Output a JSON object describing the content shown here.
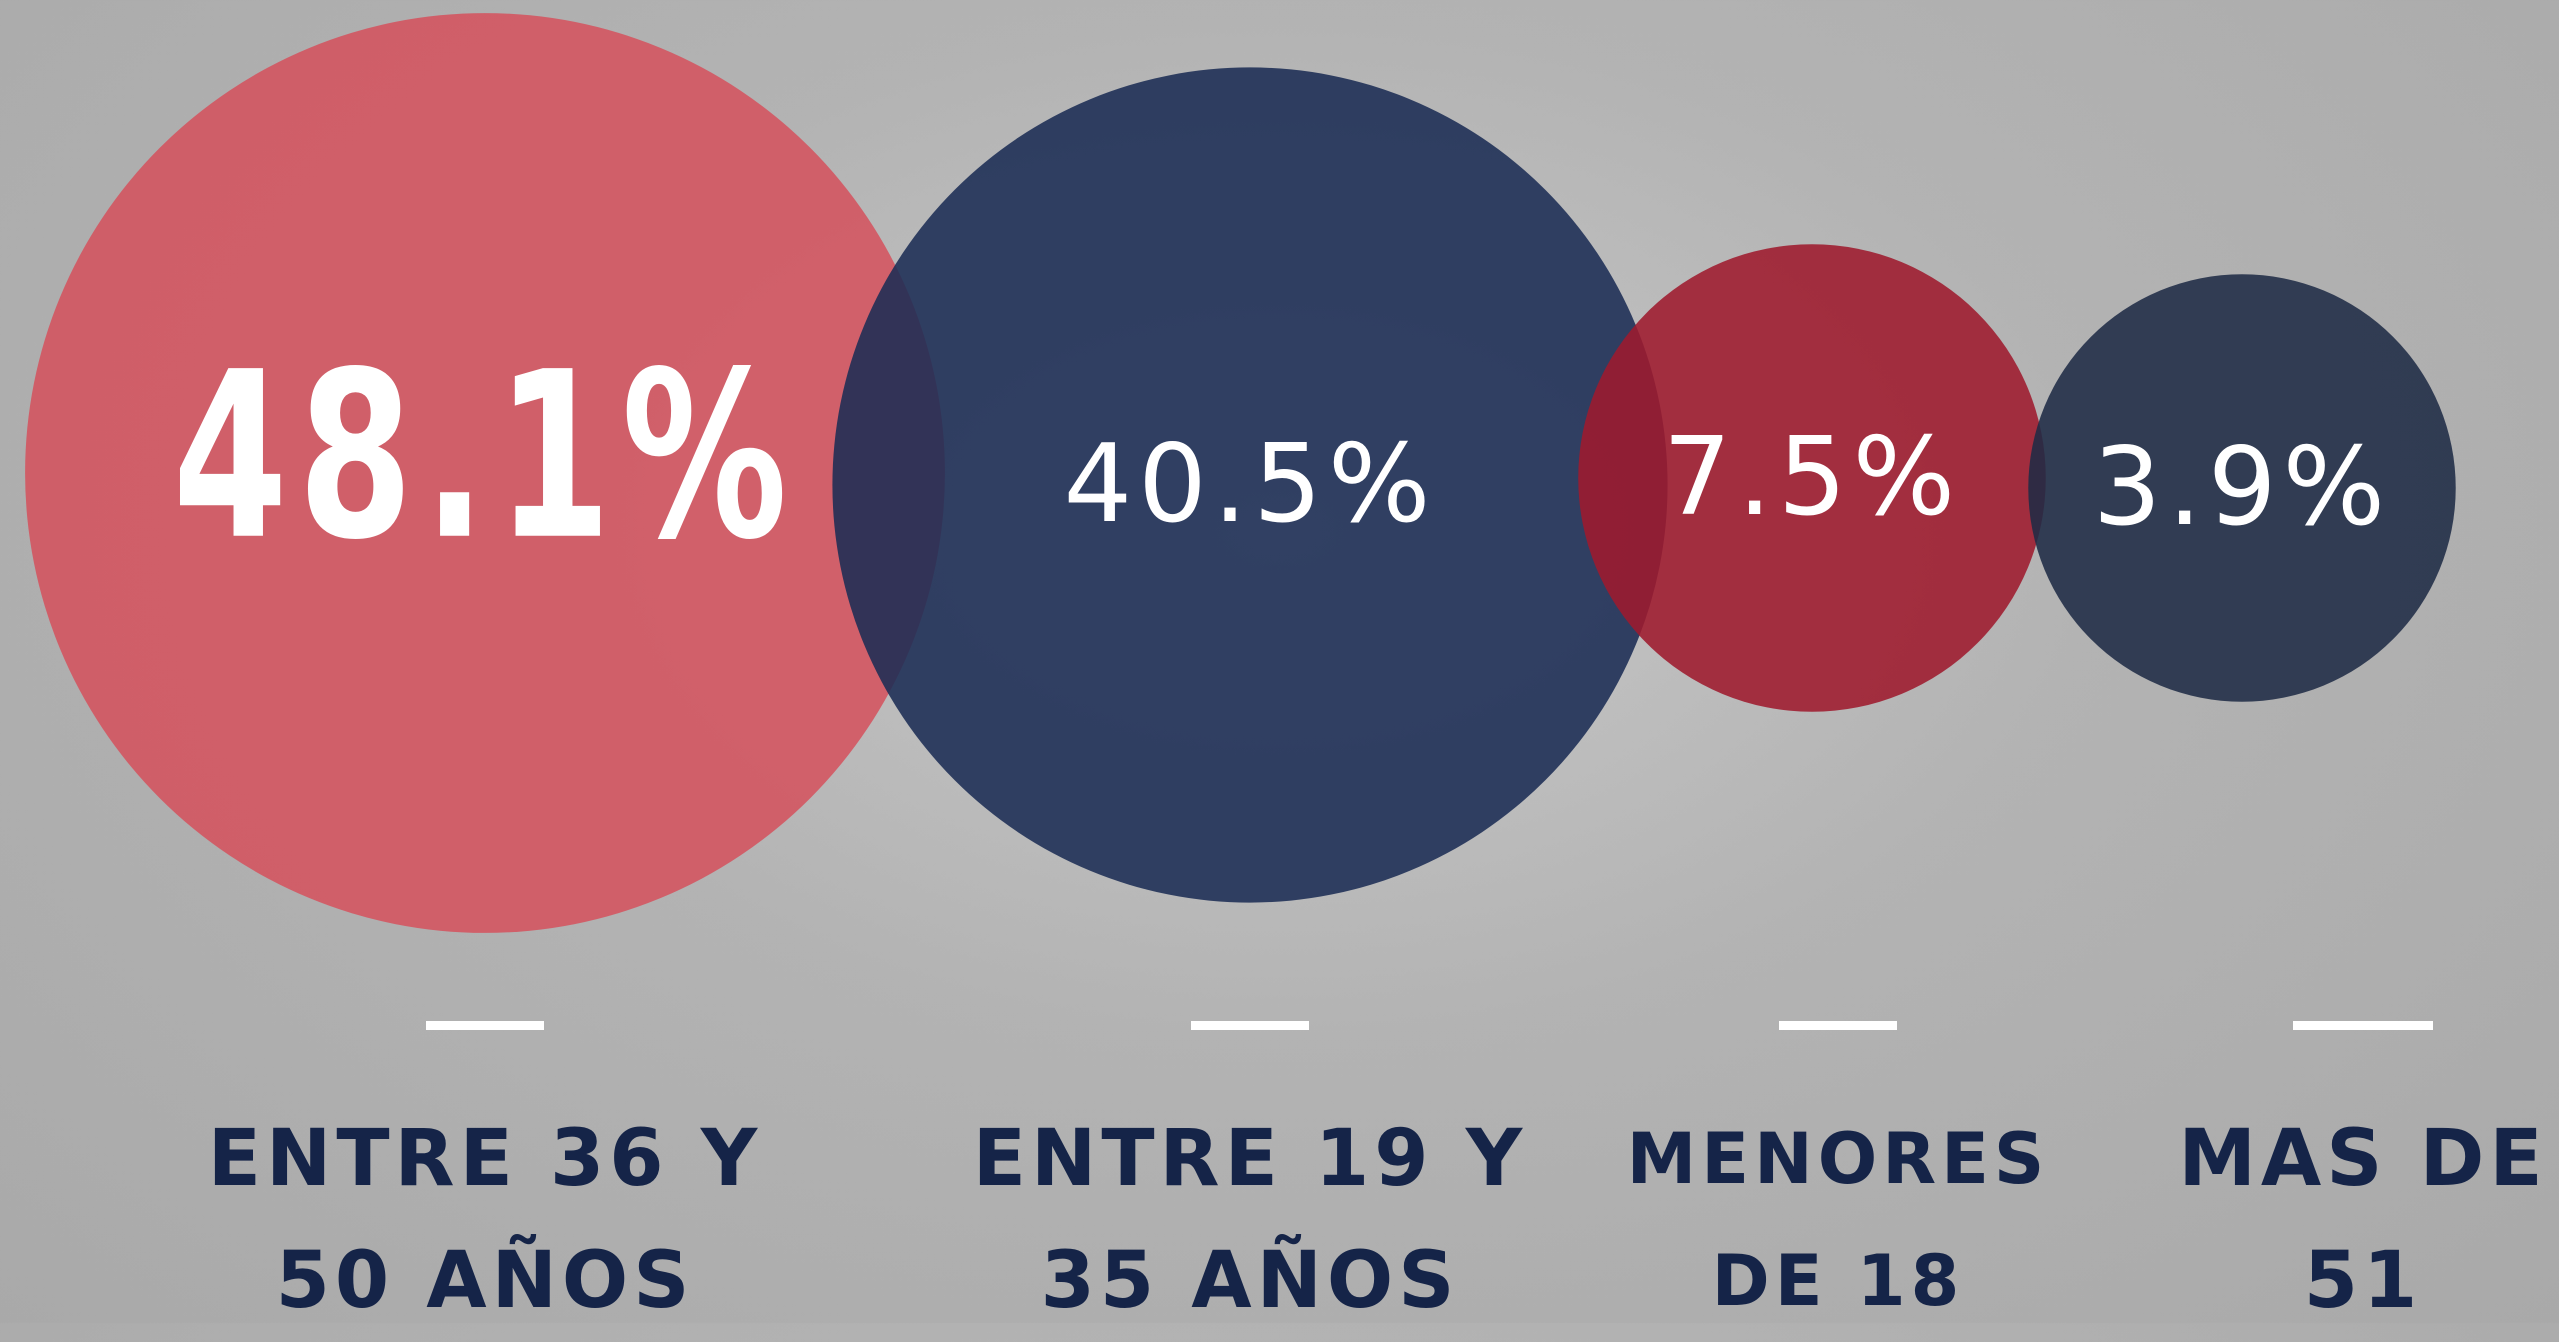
{
  "chart_data": {
    "type": "bubble",
    "categories": [
      "ENTRE 36 Y 50 AÑOS",
      "ENTRE 19 Y 35 AÑOS",
      "MENORES DE 18",
      "MAS DE 51"
    ],
    "values": [
      48.1,
      40.5,
      7.5,
      3.9
    ],
    "value_labels": [
      "48.1%",
      "40.5%",
      "7.5%",
      "3.9%"
    ],
    "colors": [
      "#d4535e",
      "#1b2c54",
      "#9e1a2d",
      "#1f2b46"
    ]
  }
}
